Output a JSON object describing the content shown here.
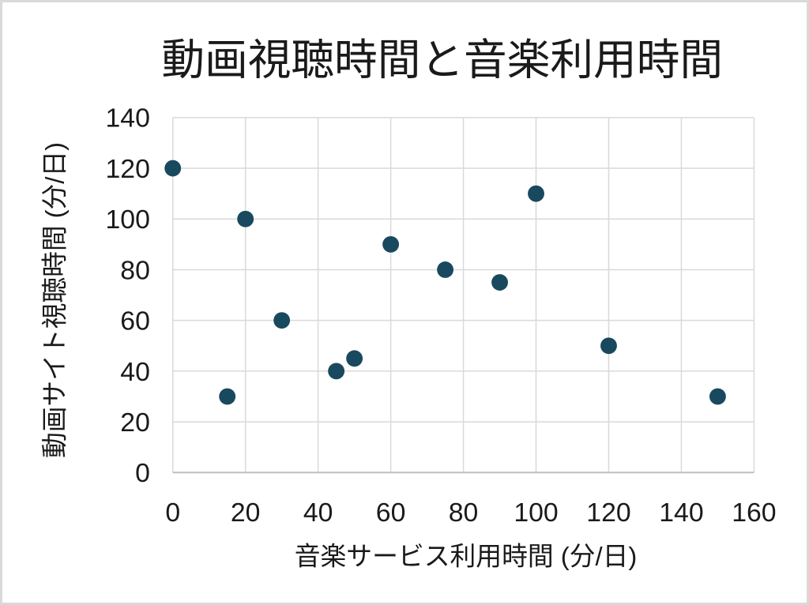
{
  "chart_data": {
    "type": "scatter",
    "title": "動画視聴時間と音楽利用時間",
    "xlabel": "音楽サービス利用時間 (分/日)",
    "ylabel": "動画サイト視聴時間 (分/日)",
    "xlim": [
      0,
      160
    ],
    "ylim": [
      0,
      140
    ],
    "xticks": [
      0,
      20,
      40,
      60,
      80,
      100,
      120,
      140,
      160
    ],
    "yticks": [
      0,
      20,
      40,
      60,
      80,
      100,
      120,
      140
    ],
    "grid": true,
    "legend": "none",
    "points": [
      [
        0,
        120
      ],
      [
        15,
        30
      ],
      [
        20,
        100
      ],
      [
        30,
        60
      ],
      [
        45,
        40
      ],
      [
        50,
        45
      ],
      [
        60,
        90
      ],
      [
        75,
        80
      ],
      [
        90,
        75
      ],
      [
        100,
        110
      ],
      [
        120,
        50
      ],
      [
        150,
        30
      ]
    ],
    "marker_color": "#19495f",
    "gridline_color": "#d9d9d9",
    "axisline_color": "#bfbfbf",
    "text_color": "#1a1a1a",
    "border_color": "#d9d9d9"
  }
}
